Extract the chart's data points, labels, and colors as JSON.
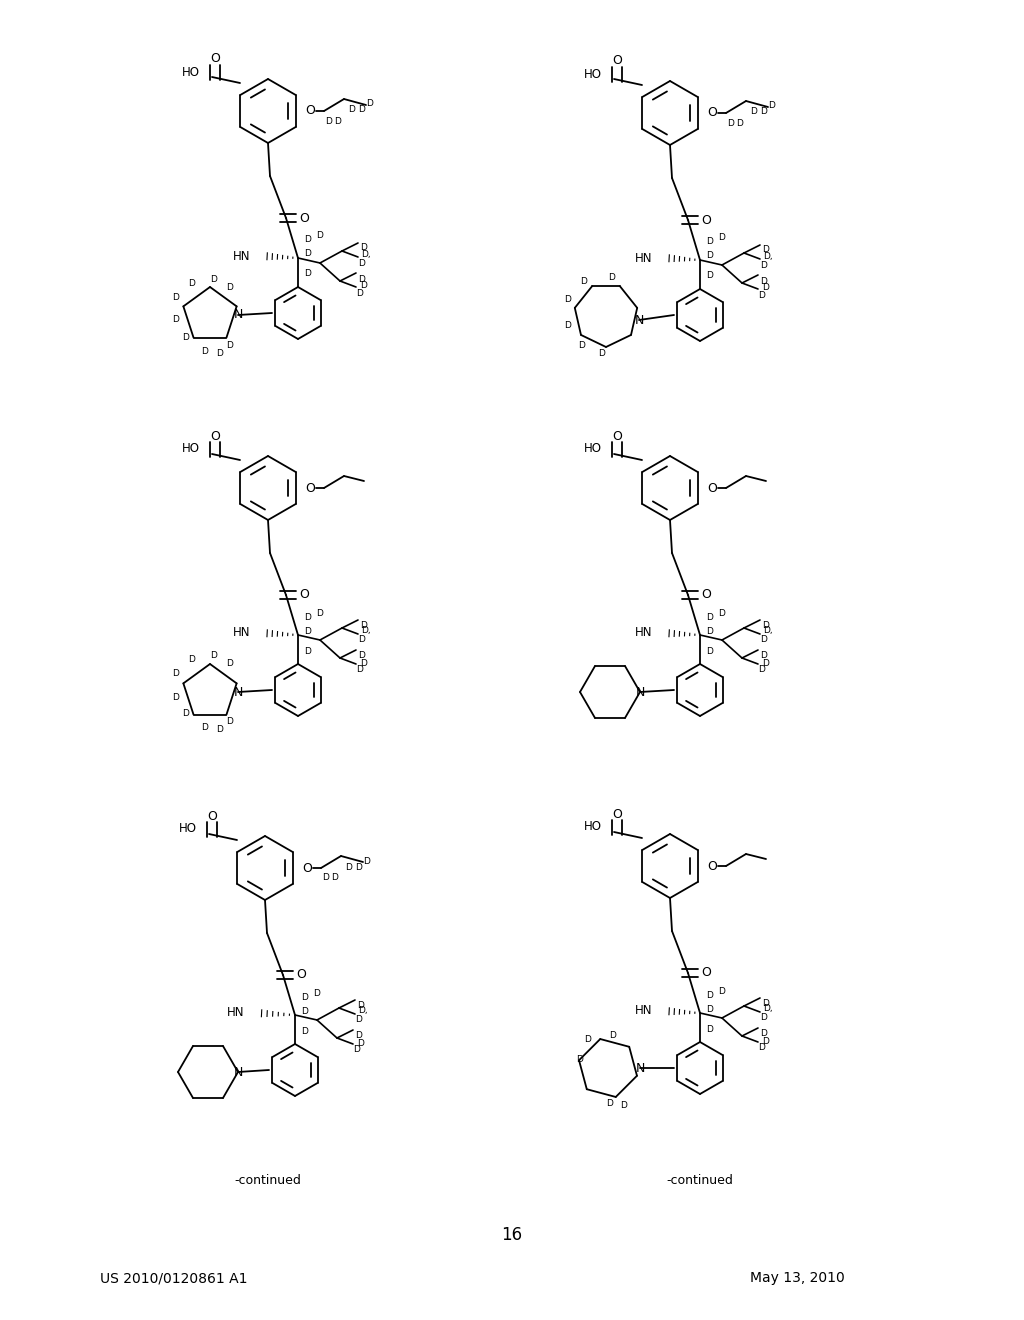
{
  "page_header_left": "US 2010/0120861 A1",
  "page_header_right": "May 13, 2010",
  "page_number": "16",
  "continued_label": "-continued",
  "background_color": "#ffffff",
  "figure_width": 10.24,
  "figure_height": 13.2,
  "dpi": 100
}
